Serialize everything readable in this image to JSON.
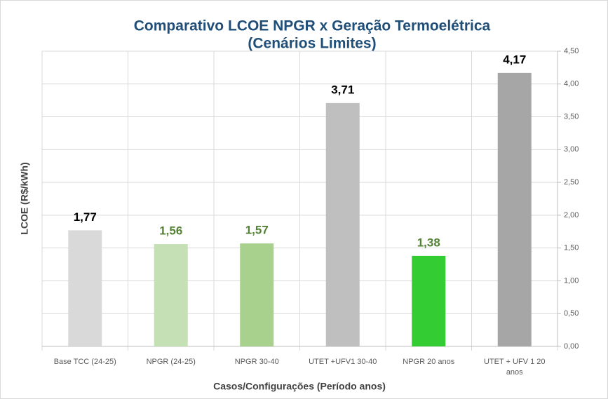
{
  "chart_data": {
    "type": "bar",
    "title": [
      "Comparativo LCOE NPGR x Geração Termoelétrica",
      "(Cenários Limites)"
    ],
    "x_label": "Casos/Configurações (Período anos)",
    "y_label": "LCOE (R$/kWh)",
    "categories": [
      "Base TCC (24-25)",
      "NPGR (24-25)",
      "NPGR 30-40",
      "UTET +UFV1 30-40",
      "NPGR 20 anos",
      "UTET + UFV 1 20 anos"
    ],
    "values": [
      1.77,
      1.56,
      1.57,
      3.71,
      1.38,
      4.17
    ],
    "value_labels": [
      "1,77",
      "1,56",
      "1,57",
      "3,71",
      "1,38",
      "4,17"
    ],
    "colors": [
      "#d9d9d9",
      "#c5e0b4",
      "#a9d18e",
      "#bfbfbf",
      "#33cc33",
      "#a6a6a6"
    ],
    "label_colors": [
      "#000000",
      "#548235",
      "#548235",
      "#000000",
      "#548235",
      "#000000"
    ],
    "ylim": [
      0,
      4.5
    ],
    "yticks": [
      {
        "value": 0,
        "label": "0,00"
      },
      {
        "value": 0.5,
        "label": "0,50"
      },
      {
        "value": 1,
        "label": "1,00"
      },
      {
        "value": 1.5,
        "label": "1,50"
      },
      {
        "value": 2,
        "label": "2,00"
      },
      {
        "value": 2.5,
        "label": "2,50"
      },
      {
        "value": 3,
        "label": "3,00"
      },
      {
        "value": 3.5,
        "label": "3,50"
      },
      {
        "value": 4,
        "label": "4,00"
      },
      {
        "value": 4.5,
        "label": "4,50"
      }
    ],
    "y_axis_side": "right",
    "grid": true
  }
}
